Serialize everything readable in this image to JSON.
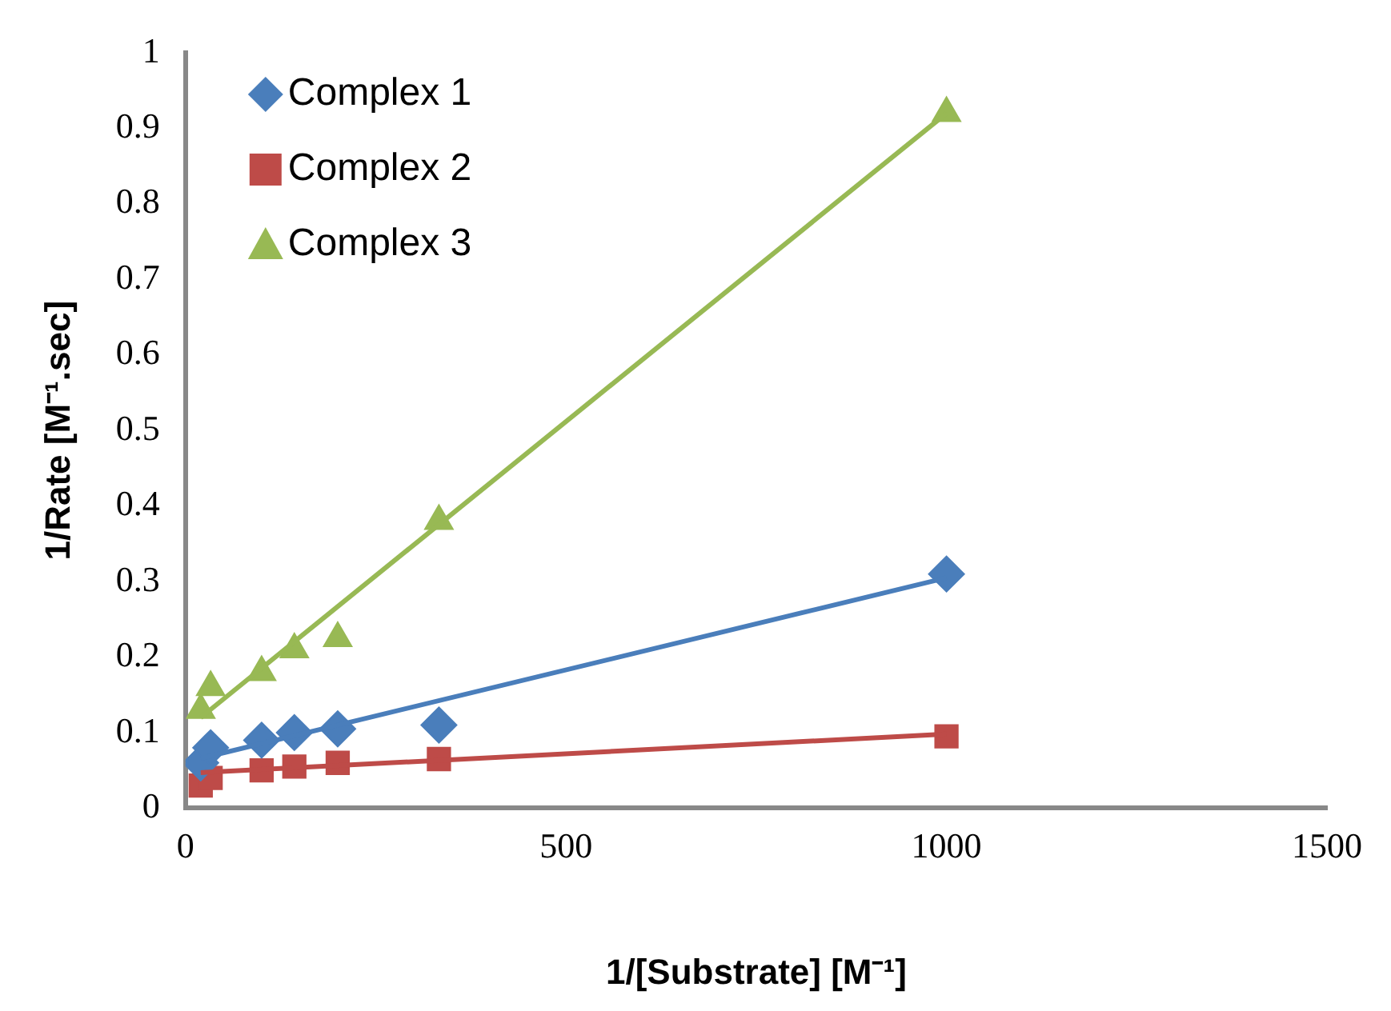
{
  "chart_data": {
    "type": "scatter",
    "xlabel": "1/[Substrate] [M⁻¹]",
    "ylabel": "1/Rate [M⁻¹.sec]",
    "xlim": [
      0,
      1500
    ],
    "xticks": [
      0,
      500,
      1000,
      1500
    ],
    "ylim": [
      0,
      1
    ],
    "yticks": [
      0,
      0.1,
      0.2,
      0.3,
      0.4,
      0.5,
      0.6,
      0.7,
      0.8,
      0.9,
      1
    ],
    "grid": false,
    "legend": "top left",
    "series": [
      {
        "name": "Complex 1",
        "color": "#4a7ebb",
        "marker": "diamond",
        "x": [
          20,
          33,
          100,
          143,
          200,
          333,
          1000
        ],
        "values": [
          0.06,
          0.08,
          0.09,
          0.1,
          0.105,
          0.11,
          0.31
        ]
      },
      {
        "name": "Complex 2",
        "color": "#be4b48",
        "marker": "square",
        "x": [
          20,
          33,
          100,
          143,
          200,
          333,
          1000
        ],
        "values": [
          0.03,
          0.04,
          0.05,
          0.055,
          0.06,
          0.065,
          0.095
        ]
      },
      {
        "name": "Complex 3",
        "color": "#98b954",
        "marker": "triangle",
        "x": [
          20,
          33,
          100,
          143,
          200,
          333,
          1000
        ],
        "values": [
          0.13,
          0.16,
          0.18,
          0.21,
          0.225,
          0.38,
          0.92
        ]
      },
      {
        "type": "line",
        "color": "#4a7ebb",
        "marker": "none",
        "x": [
          20,
          1000
        ],
        "values": [
          0.066,
          0.305
        ]
      },
      {
        "type": "line",
        "color": "#be4b48",
        "marker": "none",
        "x": [
          20,
          1000
        ],
        "values": [
          0.047,
          0.098
        ]
      },
      {
        "type": "line",
        "color": "#98b954",
        "marker": "none",
        "x": [
          20,
          1000
        ],
        "values": [
          0.12,
          0.92
        ]
      }
    ]
  }
}
